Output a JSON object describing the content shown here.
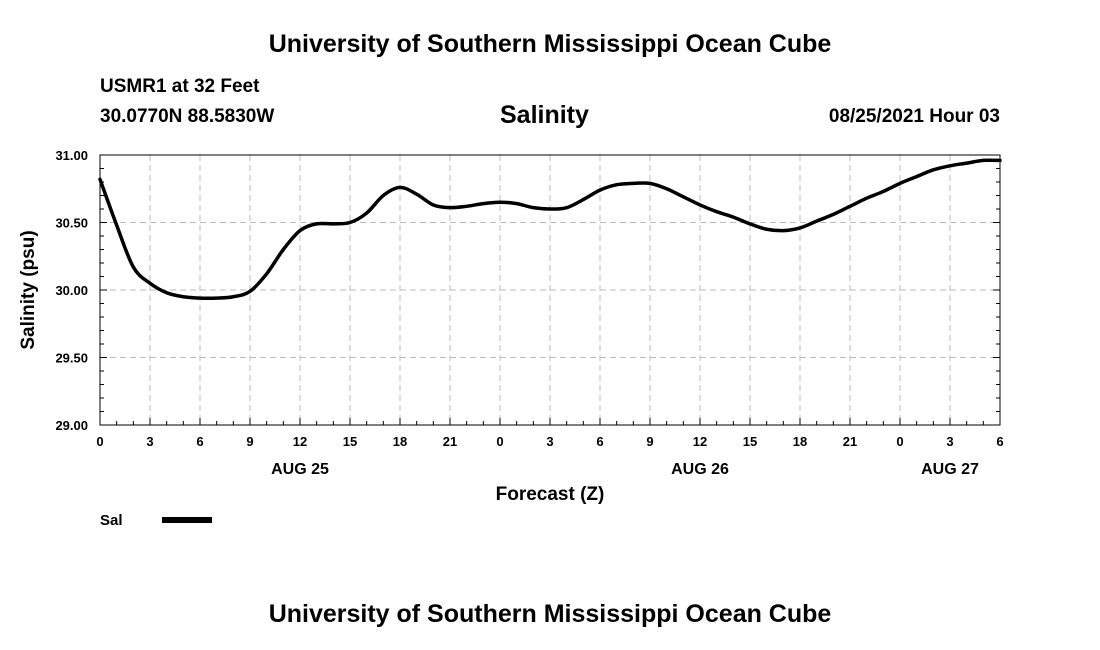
{
  "header": {
    "title": "University of Southern Mississippi Ocean Cube",
    "station": "USMR1 at 32 Feet",
    "coordinates": "30.0770N  88.5830W",
    "variable": "Salinity",
    "issued": "08/25/2021 Hour 03"
  },
  "footer": {
    "title": "University of Southern Mississippi Ocean Cube"
  },
  "chart_data": {
    "type": "line",
    "title": "Salinity",
    "xlabel": "Forecast (Z)",
    "ylabel": "Salinity (psu)",
    "xlim": [
      0,
      54
    ],
    "ylim": [
      29.0,
      31.0
    ],
    "grid": true,
    "x_ticks": [
      0,
      3,
      6,
      9,
      12,
      15,
      18,
      21,
      24,
      27,
      30,
      33,
      36,
      39,
      42,
      45,
      48,
      51,
      54
    ],
    "x_tick_labels": [
      "0",
      "3",
      "6",
      "9",
      "12",
      "15",
      "18",
      "21",
      "0",
      "3",
      "6",
      "9",
      "12",
      "15",
      "18",
      "21",
      "0",
      "3",
      "6"
    ],
    "y_ticks": [
      29.0,
      29.5,
      30.0,
      30.5,
      31.0
    ],
    "y_tick_labels": [
      "29.00",
      "29.50",
      "30.00",
      "30.50",
      "31.00"
    ],
    "day_labels": [
      {
        "x": 12,
        "label": "AUG 25"
      },
      {
        "x": 36,
        "label": "AUG 26"
      },
      {
        "x": 51,
        "label": "AUG 27"
      }
    ],
    "legend": [
      {
        "name": "Sal",
        "color": "#000000"
      }
    ],
    "legend_position": "bottom-left",
    "series": [
      {
        "name": "Sal",
        "color": "#000000",
        "x": [
          0,
          1,
          2,
          3,
          4,
          5,
          6,
          7,
          8,
          9,
          10,
          11,
          12,
          13,
          14,
          15,
          16,
          17,
          18,
          19,
          20,
          21,
          22,
          23,
          24,
          25,
          26,
          27,
          28,
          29,
          30,
          31,
          32,
          33,
          34,
          35,
          36,
          37,
          38,
          39,
          40,
          41,
          42,
          43,
          44,
          45,
          46,
          47,
          48,
          49,
          50,
          51,
          52,
          53,
          54
        ],
        "values": [
          30.82,
          30.48,
          30.17,
          30.05,
          29.98,
          29.95,
          29.94,
          29.94,
          29.95,
          29.99,
          30.12,
          30.3,
          30.44,
          30.49,
          30.49,
          30.5,
          30.57,
          30.7,
          30.76,
          30.71,
          30.63,
          30.61,
          30.62,
          30.64,
          30.65,
          30.64,
          30.61,
          30.6,
          30.61,
          30.67,
          30.74,
          30.78,
          30.79,
          30.79,
          30.75,
          30.69,
          30.63,
          30.58,
          30.54,
          30.49,
          30.45,
          30.44,
          30.46,
          30.51,
          30.56,
          30.62,
          30.68,
          30.73,
          30.79,
          30.84,
          30.89,
          30.92,
          30.94,
          30.96,
          30.96
        ]
      }
    ]
  }
}
